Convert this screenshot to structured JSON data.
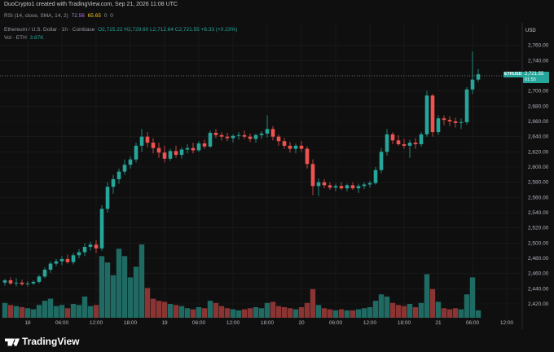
{
  "header": {
    "attribution": "DuoCrypto1 created with TradingView.com, Sep 21, 2026 11:08 UTC"
  },
  "rsi_legend": {
    "label": "RSI (14, close, SMA, 14, 2)",
    "value1": "72.56",
    "value2": "65.65",
    "value3": "0",
    "value4": "0"
  },
  "main_legend": {
    "symbol": "Ethereum / U.S. Dollar · 1h · Coinbase",
    "ohlc": "O2,715.22 H2,729.60 L2,712.64 C2,721.55 +6.33 (+0.23%)"
  },
  "volume_legend": {
    "label": "Vol · ETH",
    "value": "3.87K"
  },
  "axis": {
    "currency": "USD",
    "last_symbol": "ETHUSD",
    "last_price": "2,721.55",
    "countdown": "01:55"
  },
  "colors": {
    "up": "#26a69a",
    "down": "#ef5350",
    "bg": "#0f0f0f",
    "grid": "#1e1e1e"
  },
  "chart_data": {
    "type": "candlestick",
    "symbol": "ETHUSD",
    "interval": "1h",
    "y_ticks": [
      2420,
      2440,
      2460,
      2480,
      2500,
      2520,
      2540,
      2560,
      2580,
      2600,
      2620,
      2640,
      2660,
      2680,
      2700,
      2720,
      2740,
      2760
    ],
    "y_tick_labels": [
      "2,420.00",
      "2,440.00",
      "2,460.00",
      "2,480.00",
      "2,500.00",
      "2,520.00",
      "2,540.00",
      "2,560.00",
      "2,580.00",
      "2,600.00",
      "2,620.00",
      "2,640.00",
      "2,660.00",
      "2,680.00",
      "2,700.00",
      "2,720.00",
      "2,740.00",
      "2,760.00"
    ],
    "ylim": [
      2404,
      2775
    ],
    "x_ticks": [
      {
        "index": 4,
        "label": "18"
      },
      {
        "index": 10,
        "label": "06:00"
      },
      {
        "index": 16,
        "label": "12:00"
      },
      {
        "index": 22,
        "label": "18:00"
      },
      {
        "index": 28,
        "label": "19"
      },
      {
        "index": 34,
        "label": "06:00"
      },
      {
        "index": 40,
        "label": "12:00"
      },
      {
        "index": 46,
        "label": "18:00"
      },
      {
        "index": 52,
        "label": "20"
      },
      {
        "index": 58,
        "label": "06:00"
      },
      {
        "index": 64,
        "label": "12:00"
      },
      {
        "index": 70,
        "label": "18:00"
      },
      {
        "index": 76,
        "label": "21"
      },
      {
        "index": 82,
        "label": "06:00"
      },
      {
        "index": 88,
        "label": "12:00"
      }
    ],
    "candles": [
      {
        "o": 2448,
        "h": 2453,
        "l": 2444,
        "c": 2451,
        "v": 14
      },
      {
        "o": 2451,
        "h": 2455,
        "l": 2445,
        "c": 2447,
        "v": 12
      },
      {
        "o": 2447,
        "h": 2454,
        "l": 2443,
        "c": 2448,
        "v": 11
      },
      {
        "o": 2448,
        "h": 2452,
        "l": 2444,
        "c": 2446,
        "v": 10
      },
      {
        "o": 2446,
        "h": 2450,
        "l": 2443,
        "c": 2447,
        "v": 9
      },
      {
        "o": 2447,
        "h": 2451,
        "l": 2445,
        "c": 2449,
        "v": 8
      },
      {
        "o": 2449,
        "h": 2458,
        "l": 2447,
        "c": 2456,
        "v": 12
      },
      {
        "o": 2456,
        "h": 2468,
        "l": 2454,
        "c": 2465,
        "v": 16
      },
      {
        "o": 2465,
        "h": 2476,
        "l": 2461,
        "c": 2473,
        "v": 18
      },
      {
        "o": 2473,
        "h": 2479,
        "l": 2470,
        "c": 2476,
        "v": 11
      },
      {
        "o": 2476,
        "h": 2483,
        "l": 2471,
        "c": 2479,
        "v": 12
      },
      {
        "o": 2479,
        "h": 2485,
        "l": 2473,
        "c": 2475,
        "v": 9
      },
      {
        "o": 2475,
        "h": 2487,
        "l": 2472,
        "c": 2484,
        "v": 13
      },
      {
        "o": 2484,
        "h": 2492,
        "l": 2480,
        "c": 2488,
        "v": 12
      },
      {
        "o": 2488,
        "h": 2500,
        "l": 2483,
        "c": 2495,
        "v": 20
      },
      {
        "o": 2495,
        "h": 2502,
        "l": 2490,
        "c": 2498,
        "v": 11
      },
      {
        "o": 2498,
        "h": 2504,
        "l": 2487,
        "c": 2493,
        "v": 12
      },
      {
        "o": 2493,
        "h": 2550,
        "l": 2490,
        "c": 2545,
        "v": 58
      },
      {
        "o": 2545,
        "h": 2580,
        "l": 2540,
        "c": 2574,
        "v": 52
      },
      {
        "o": 2574,
        "h": 2590,
        "l": 2565,
        "c": 2584,
        "v": 40
      },
      {
        "o": 2584,
        "h": 2598,
        "l": 2578,
        "c": 2594,
        "v": 65
      },
      {
        "o": 2594,
        "h": 2610,
        "l": 2590,
        "c": 2603,
        "v": 58
      },
      {
        "o": 2603,
        "h": 2614,
        "l": 2598,
        "c": 2610,
        "v": 38
      },
      {
        "o": 2610,
        "h": 2632,
        "l": 2606,
        "c": 2628,
        "v": 48
      },
      {
        "o": 2628,
        "h": 2650,
        "l": 2620,
        "c": 2640,
        "v": 69
      },
      {
        "o": 2640,
        "h": 2646,
        "l": 2626,
        "c": 2632,
        "v": 28
      },
      {
        "o": 2632,
        "h": 2638,
        "l": 2618,
        "c": 2625,
        "v": 18
      },
      {
        "o": 2625,
        "h": 2632,
        "l": 2612,
        "c": 2619,
        "v": 16
      },
      {
        "o": 2619,
        "h": 2628,
        "l": 2606,
        "c": 2611,
        "v": 15
      },
      {
        "o": 2611,
        "h": 2624,
        "l": 2608,
        "c": 2621,
        "v": 13
      },
      {
        "o": 2621,
        "h": 2628,
        "l": 2612,
        "c": 2616,
        "v": 12
      },
      {
        "o": 2616,
        "h": 2626,
        "l": 2611,
        "c": 2623,
        "v": 11
      },
      {
        "o": 2623,
        "h": 2630,
        "l": 2618,
        "c": 2625,
        "v": 9
      },
      {
        "o": 2625,
        "h": 2632,
        "l": 2618,
        "c": 2622,
        "v": 8
      },
      {
        "o": 2622,
        "h": 2634,
        "l": 2620,
        "c": 2631,
        "v": 10
      },
      {
        "o": 2631,
        "h": 2636,
        "l": 2624,
        "c": 2627,
        "v": 9
      },
      {
        "o": 2627,
        "h": 2648,
        "l": 2625,
        "c": 2645,
        "v": 16
      },
      {
        "o": 2645,
        "h": 2650,
        "l": 2638,
        "c": 2642,
        "v": 14
      },
      {
        "o": 2642,
        "h": 2646,
        "l": 2635,
        "c": 2640,
        "v": 11
      },
      {
        "o": 2640,
        "h": 2645,
        "l": 2634,
        "c": 2638,
        "v": 9
      },
      {
        "o": 2638,
        "h": 2643,
        "l": 2632,
        "c": 2641,
        "v": 8
      },
      {
        "o": 2641,
        "h": 2646,
        "l": 2636,
        "c": 2642,
        "v": 7
      },
      {
        "o": 2642,
        "h": 2648,
        "l": 2637,
        "c": 2640,
        "v": 8
      },
      {
        "o": 2640,
        "h": 2644,
        "l": 2633,
        "c": 2637,
        "v": 9
      },
      {
        "o": 2637,
        "h": 2644,
        "l": 2632,
        "c": 2642,
        "v": 10
      },
      {
        "o": 2642,
        "h": 2647,
        "l": 2637,
        "c": 2644,
        "v": 9
      },
      {
        "o": 2644,
        "h": 2668,
        "l": 2639,
        "c": 2650,
        "v": 14
      },
      {
        "o": 2650,
        "h": 2654,
        "l": 2635,
        "c": 2640,
        "v": 15
      },
      {
        "o": 2640,
        "h": 2643,
        "l": 2628,
        "c": 2634,
        "v": 11
      },
      {
        "o": 2634,
        "h": 2638,
        "l": 2624,
        "c": 2628,
        "v": 10
      },
      {
        "o": 2628,
        "h": 2633,
        "l": 2619,
        "c": 2624,
        "v": 9
      },
      {
        "o": 2624,
        "h": 2631,
        "l": 2618,
        "c": 2628,
        "v": 8
      },
      {
        "o": 2628,
        "h": 2634,
        "l": 2620,
        "c": 2624,
        "v": 10
      },
      {
        "o": 2624,
        "h": 2627,
        "l": 2598,
        "c": 2604,
        "v": 14
      },
      {
        "o": 2604,
        "h": 2610,
        "l": 2563,
        "c": 2575,
        "v": 27
      },
      {
        "o": 2575,
        "h": 2585,
        "l": 2562,
        "c": 2580,
        "v": 12
      },
      {
        "o": 2580,
        "h": 2584,
        "l": 2572,
        "c": 2576,
        "v": 9
      },
      {
        "o": 2576,
        "h": 2580,
        "l": 2570,
        "c": 2573,
        "v": 8
      },
      {
        "o": 2573,
        "h": 2578,
        "l": 2568,
        "c": 2575,
        "v": 7
      },
      {
        "o": 2575,
        "h": 2580,
        "l": 2570,
        "c": 2572,
        "v": 8
      },
      {
        "o": 2572,
        "h": 2578,
        "l": 2568,
        "c": 2576,
        "v": 7
      },
      {
        "o": 2576,
        "h": 2580,
        "l": 2570,
        "c": 2572,
        "v": 7
      },
      {
        "o": 2572,
        "h": 2578,
        "l": 2566,
        "c": 2575,
        "v": 8
      },
      {
        "o": 2575,
        "h": 2580,
        "l": 2571,
        "c": 2577,
        "v": 9
      },
      {
        "o": 2577,
        "h": 2582,
        "l": 2573,
        "c": 2579,
        "v": 10
      },
      {
        "o": 2579,
        "h": 2600,
        "l": 2577,
        "c": 2596,
        "v": 16
      },
      {
        "o": 2596,
        "h": 2625,
        "l": 2592,
        "c": 2620,
        "v": 22
      },
      {
        "o": 2620,
        "h": 2650,
        "l": 2615,
        "c": 2643,
        "v": 20
      },
      {
        "o": 2643,
        "h": 2646,
        "l": 2630,
        "c": 2635,
        "v": 14
      },
      {
        "o": 2635,
        "h": 2642,
        "l": 2628,
        "c": 2630,
        "v": 12
      },
      {
        "o": 2630,
        "h": 2637,
        "l": 2624,
        "c": 2628,
        "v": 11
      },
      {
        "o": 2628,
        "h": 2636,
        "l": 2612,
        "c": 2632,
        "v": 13
      },
      {
        "o": 2632,
        "h": 2638,
        "l": 2624,
        "c": 2630,
        "v": 10
      },
      {
        "o": 2630,
        "h": 2646,
        "l": 2627,
        "c": 2643,
        "v": 14
      },
      {
        "o": 2643,
        "h": 2700,
        "l": 2640,
        "c": 2694,
        "v": 41
      },
      {
        "o": 2694,
        "h": 2696,
        "l": 2640,
        "c": 2646,
        "v": 27
      },
      {
        "o": 2646,
        "h": 2668,
        "l": 2642,
        "c": 2664,
        "v": 15
      },
      {
        "o": 2664,
        "h": 2668,
        "l": 2655,
        "c": 2662,
        "v": 9
      },
      {
        "o": 2662,
        "h": 2667,
        "l": 2654,
        "c": 2660,
        "v": 8
      },
      {
        "o": 2660,
        "h": 2665,
        "l": 2652,
        "c": 2658,
        "v": 9
      },
      {
        "o": 2658,
        "h": 2664,
        "l": 2650,
        "c": 2659,
        "v": 8
      },
      {
        "o": 2659,
        "h": 2705,
        "l": 2656,
        "c": 2702,
        "v": 22
      },
      {
        "o": 2702,
        "h": 2752,
        "l": 2696,
        "c": 2715,
        "v": 38
      },
      {
        "o": 2715,
        "h": 2729,
        "l": 2712,
        "c": 2722,
        "v": 7
      }
    ]
  }
}
